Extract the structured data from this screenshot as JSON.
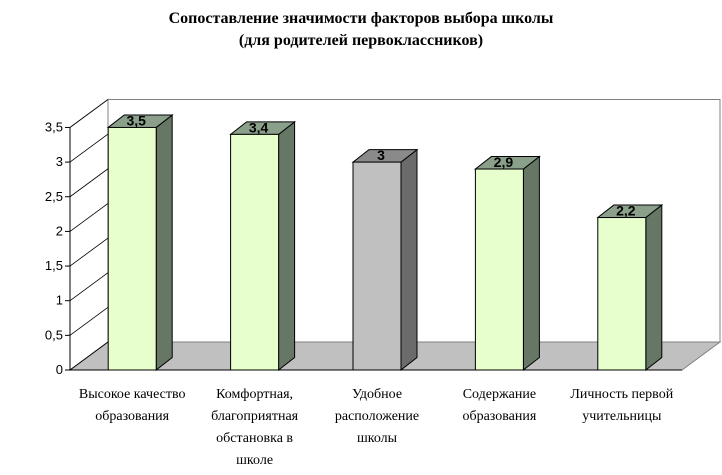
{
  "chart_data": {
    "type": "bar",
    "title": [
      "Сопоставление значимости факторов выбора школы",
      "(для родителей первоклассников)"
    ],
    "categories": [
      [
        "Высокое качество",
        "образования"
      ],
      [
        "Комфортная,",
        "благоприятная",
        "обстановка в",
        "школе"
      ],
      [
        "Удобное",
        "расположение",
        "школы"
      ],
      [
        "Содержание",
        "образования"
      ],
      [
        "Личность первой",
        "учительницы"
      ]
    ],
    "values": [
      3.5,
      3.4,
      3.0,
      2.9,
      2.2
    ],
    "value_labels": [
      "3,5",
      "3,4",
      "3",
      "2,9",
      "2,2"
    ],
    "y_ticks": [
      "0",
      "0,5",
      "1",
      "1,5",
      "2",
      "2,5",
      "3",
      "3,5"
    ],
    "ylim": [
      0,
      3.5
    ],
    "three_d": true,
    "grid": false,
    "legend": "none",
    "colors": {
      "bar_front": "#e6ffcc",
      "bar_side": "#667766",
      "bar_top": "#8ba08b",
      "highlight_front": "#c0c0c0",
      "highlight_side": "#6b6b6b",
      "highlight_top": "#8a8a8a",
      "floor": "#c0c0c0",
      "wall": "#ffffff"
    },
    "highlight_index": 2
  }
}
